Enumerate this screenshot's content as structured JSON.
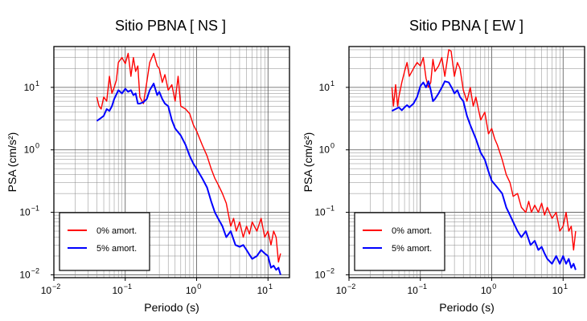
{
  "chart_data": [
    {
      "type": "line",
      "title": "Sitio PBNA [ NS ]",
      "xlabel": "Periodo (s)",
      "ylabel": "PSA (cm/s²)",
      "xscale": "log",
      "yscale": "log",
      "xlim": [
        0.01,
        20
      ],
      "ylim": [
        0.009,
        45
      ],
      "x_ticks": [
        {
          "label": "10",
          "exp": "−2"
        },
        {
          "label": "10",
          "exp": "−1"
        },
        {
          "label": "10",
          "exp": "0"
        },
        {
          "label": "10",
          "exp": "1"
        }
      ],
      "y_ticks": [
        {
          "label": "10",
          "exp": "−2"
        },
        {
          "label": "10",
          "exp": "−1"
        },
        {
          "label": "10",
          "exp": "0"
        },
        {
          "label": "10",
          "exp": "1"
        }
      ],
      "grid": true,
      "legend_position": "bottom-left",
      "series": [
        {
          "name": "0% amort.",
          "color": "#ff0000",
          "x": [
            0.04,
            0.043,
            0.046,
            0.05,
            0.055,
            0.06,
            0.065,
            0.07,
            0.075,
            0.08,
            0.09,
            0.1,
            0.11,
            0.12,
            0.13,
            0.14,
            0.15,
            0.16,
            0.18,
            0.2,
            0.22,
            0.25,
            0.28,
            0.3,
            0.33,
            0.36,
            0.4,
            0.45,
            0.5,
            0.55,
            0.6,
            0.7,
            0.8,
            0.9,
            1.0,
            1.2,
            1.4,
            1.6,
            1.8,
            2.0,
            2.3,
            2.6,
            3.0,
            3.3,
            3.6,
            4.0,
            4.5,
            5.0,
            5.5,
            6.0,
            7.0,
            8.0,
            9.0,
            10.0,
            11.0,
            12.0,
            13.0,
            14.0,
            15.0
          ],
          "y": [
            7,
            5,
            4.5,
            7,
            6,
            15,
            8,
            10,
            13,
            25,
            30,
            24,
            35,
            15,
            30,
            18,
            22,
            7,
            5.5,
            12,
            25,
            35,
            22,
            20,
            12,
            16,
            9,
            11,
            6,
            15,
            5,
            4.5,
            3.8,
            2.5,
            2.0,
            1.2,
            0.8,
            0.5,
            0.35,
            0.28,
            0.2,
            0.14,
            0.06,
            0.08,
            0.05,
            0.07,
            0.04,
            0.06,
            0.045,
            0.07,
            0.05,
            0.08,
            0.04,
            0.05,
            0.03,
            0.05,
            0.04,
            0.016,
            0.022
          ]
        },
        {
          "name": "5% amort.",
          "color": "#0000ff",
          "x": [
            0.04,
            0.045,
            0.05,
            0.055,
            0.06,
            0.065,
            0.07,
            0.08,
            0.09,
            0.1,
            0.11,
            0.12,
            0.13,
            0.14,
            0.15,
            0.16,
            0.18,
            0.2,
            0.22,
            0.25,
            0.28,
            0.3,
            0.33,
            0.36,
            0.4,
            0.45,
            0.5,
            0.6,
            0.7,
            0.8,
            0.9,
            1.0,
            1.2,
            1.4,
            1.6,
            1.8,
            2.0,
            2.3,
            2.6,
            3.0,
            3.5,
            4.0,
            4.5,
            5.0,
            5.5,
            6.0,
            7.0,
            8.0,
            9.0,
            10.0,
            11.0,
            12.0,
            13.0,
            14.0,
            15.0
          ],
          "y": [
            2.9,
            3.2,
            3.5,
            4.5,
            4.2,
            5,
            6.5,
            9,
            8,
            9.5,
            8.5,
            9,
            7.5,
            8,
            5.5,
            5.5,
            5.8,
            6.5,
            9,
            11.5,
            7.5,
            8.5,
            6.5,
            5.5,
            5,
            3,
            2.2,
            1.7,
            1.2,
            0.8,
            0.6,
            0.5,
            0.35,
            0.25,
            0.15,
            0.1,
            0.08,
            0.06,
            0.04,
            0.05,
            0.03,
            0.028,
            0.03,
            0.025,
            0.021,
            0.018,
            0.02,
            0.025,
            0.022,
            0.02,
            0.013,
            0.014,
            0.012,
            0.013,
            0.01
          ]
        }
      ]
    },
    {
      "type": "line",
      "title": "Sitio PBNA [ EW ]",
      "xlabel": "Periodo (s)",
      "ylabel": "PSA (cm/s²)",
      "xscale": "log",
      "yscale": "log",
      "xlim": [
        0.01,
        20
      ],
      "ylim": [
        0.009,
        45
      ],
      "x_ticks": [
        {
          "label": "10",
          "exp": "−2"
        },
        {
          "label": "10",
          "exp": "−1"
        },
        {
          "label": "10",
          "exp": "0"
        },
        {
          "label": "10",
          "exp": "1"
        }
      ],
      "y_ticks": [
        {
          "label": "10",
          "exp": "−2"
        },
        {
          "label": "10",
          "exp": "−1"
        },
        {
          "label": "10",
          "exp": "0"
        },
        {
          "label": "10",
          "exp": "1"
        }
      ],
      "grid": true,
      "legend_position": "bottom-left",
      "series": [
        {
          "name": "0% amort.",
          "color": "#ff0000",
          "x": [
            0.04,
            0.042,
            0.045,
            0.048,
            0.05,
            0.055,
            0.06,
            0.065,
            0.07,
            0.08,
            0.09,
            0.1,
            0.11,
            0.12,
            0.13,
            0.14,
            0.15,
            0.16,
            0.18,
            0.2,
            0.22,
            0.25,
            0.27,
            0.3,
            0.33,
            0.36,
            0.4,
            0.45,
            0.5,
            0.55,
            0.6,
            0.7,
            0.8,
            0.9,
            1.0,
            1.1,
            1.2,
            1.4,
            1.6,
            1.8,
            2.0,
            2.3,
            2.6,
            3.0,
            3.3,
            3.6,
            4.0,
            4.5,
            5.0,
            5.5,
            6.0,
            7.0,
            8.0,
            9.0,
            10.0,
            11.0,
            12.0,
            13.0,
            14.0,
            15.0
          ],
          "y": [
            10,
            5,
            11,
            5,
            7,
            12,
            18,
            25,
            15,
            20,
            25,
            22,
            30,
            14,
            10,
            12,
            28,
            18,
            22,
            30,
            15,
            40,
            38,
            15,
            25,
            20,
            9,
            6,
            10,
            5,
            7,
            3,
            4,
            1.8,
            2.2,
            1.5,
            1.2,
            0.7,
            0.4,
            0.3,
            0.18,
            0.2,
            0.12,
            0.1,
            0.15,
            0.1,
            0.13,
            0.1,
            0.14,
            0.09,
            0.12,
            0.08,
            0.1,
            0.05,
            0.06,
            0.1,
            0.05,
            0.06,
            0.025,
            0.05
          ]
        },
        {
          "name": "5% amort.",
          "color": "#0000ff",
          "x": [
            0.04,
            0.045,
            0.05,
            0.055,
            0.06,
            0.065,
            0.07,
            0.08,
            0.09,
            0.1,
            0.11,
            0.12,
            0.13,
            0.14,
            0.15,
            0.16,
            0.18,
            0.2,
            0.22,
            0.25,
            0.28,
            0.3,
            0.33,
            0.36,
            0.4,
            0.45,
            0.5,
            0.6,
            0.7,
            0.8,
            0.9,
            1.0,
            1.2,
            1.4,
            1.6,
            1.8,
            2.0,
            2.3,
            2.6,
            3.0,
            3.5,
            4.0,
            4.5,
            5.0,
            5.5,
            6.0,
            7.0,
            8.0,
            9.0,
            10.0,
            11.0,
            12.0,
            13.0,
            14.0,
            15.0
          ],
          "y": [
            4.2,
            4.5,
            4.8,
            4.3,
            4.8,
            5.2,
            4.8,
            5.5,
            7,
            10.5,
            12,
            10,
            12.5,
            9,
            6,
            6.5,
            8,
            10,
            12.5,
            12,
            9.5,
            8,
            9,
            7,
            6,
            3.5,
            2.5,
            1.5,
            0.9,
            0.7,
            0.45,
            0.32,
            0.25,
            0.2,
            0.12,
            0.09,
            0.07,
            0.05,
            0.04,
            0.05,
            0.03,
            0.035,
            0.025,
            0.028,
            0.022,
            0.018,
            0.015,
            0.02,
            0.015,
            0.02,
            0.015,
            0.018,
            0.013,
            0.015,
            0.012
          ]
        }
      ]
    }
  ]
}
